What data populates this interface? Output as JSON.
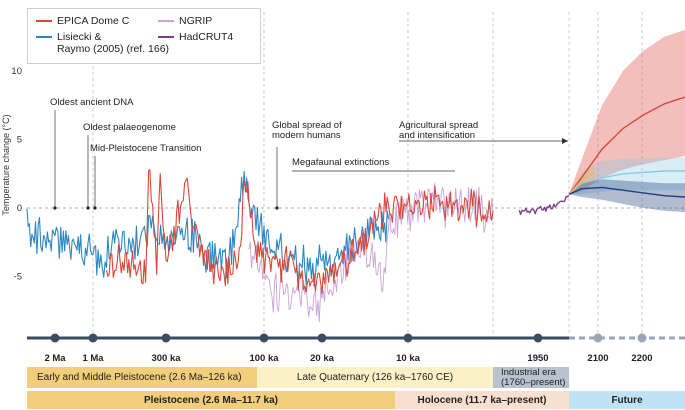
{
  "chart_data": {
    "type": "line",
    "ylabel": "Temperature change (°C)",
    "yticks": [
      -5,
      0,
      5,
      10
    ],
    "ylim": [
      -8,
      13
    ],
    "legend": {
      "placement": "top-left",
      "entries": [
        {
          "key": "epica",
          "label": "EPICA Dome C",
          "color": "#d9473c"
        },
        {
          "key": "lr04",
          "label": "Lisiecki & Raymo (2005) (ref. 166)",
          "label_line1": "Lisiecki &",
          "label_line2": "Raymo (2005) (ref. 166)",
          "color": "#2e86c1"
        },
        {
          "key": "ngrip",
          "label": "NGRIP",
          "color": "#c9a3d6"
        },
        {
          "key": "hadcrut",
          "label": "HadCRUT4",
          "color": "#7b3f8c"
        }
      ]
    },
    "timeline_ticks": [
      "2 Ma",
      "1 Ma",
      "300 ka",
      "100 ka",
      "20 ka",
      "10 ka",
      "1950",
      "2100",
      "2200"
    ],
    "series": [
      {
        "name": "Lisiecki & Raymo (2005) (ref. 166)",
        "x": [
          "2.6 Ma",
          "2.4 Ma",
          "2.2 Ma",
          "2 Ma",
          "1.8 Ma",
          "1.6 Ma",
          "1.4 Ma",
          "1.2 Ma",
          "1 Ma",
          "900 ka",
          "800 ka",
          "700 ka",
          "600 ka",
          "500 ka",
          "400 ka",
          "300 ka",
          "240 ka",
          "200 ka",
          "150 ka",
          "125 ka",
          "100 ka",
          "70 ka",
          "50 ka",
          "20 ka",
          "11.7 ka"
        ],
        "values": [
          -1.0,
          -1.8,
          -2.0,
          -1.5,
          -2.3,
          -2.2,
          -2.5,
          -3.0,
          -3.2,
          -3.5,
          -3.8,
          -3.0,
          -2.5,
          -2.8,
          -1.5,
          -2.6,
          -2.0,
          -3.0,
          -4.0,
          1.8,
          -2.0,
          -3.2,
          -3.8,
          -4.2,
          -0.8
        ]
      },
      {
        "name": "EPICA Dome C",
        "x": [
          "800 ka",
          "700 ka",
          "600 ka",
          "500 ka",
          "420 ka",
          "400 ka",
          "350 ka",
          "330 ka",
          "300 ka",
          "240 ka",
          "200 ka",
          "150 ka",
          "130 ka",
          "125 ka",
          "110 ka",
          "80 ka",
          "50 ka",
          "30 ka",
          "20 ka",
          "15 ka",
          "11.7 ka",
          "8 ka",
          "4 ka",
          "1760"
        ],
        "values": [
          -4.5,
          -4.0,
          -3.8,
          -4.0,
          -5.0,
          3.5,
          -4.5,
          2.0,
          -4.0,
          1.5,
          -3.5,
          -5.0,
          -3.0,
          2.5,
          -2.5,
          -4.5,
          -4.0,
          -5.5,
          -5.5,
          -3.0,
          0.2,
          0.3,
          0.0,
          -0.2
        ]
      },
      {
        "name": "NGRIP",
        "x": [
          "120 ka",
          "100 ka",
          "80 ka",
          "60 ka",
          "40 ka",
          "30 ka",
          "20 ka",
          "15 ka",
          "12 ka",
          "11.7 ka",
          "8 ka",
          "4 ka",
          "1760"
        ],
        "values": [
          -3.0,
          -5.0,
          -6.5,
          -6.0,
          -6.5,
          -7.0,
          -6.8,
          -3.0,
          -5.5,
          -1.0,
          0.4,
          -0.2,
          -0.3
        ]
      },
      {
        "name": "HadCRUT4",
        "x": [
          "1850",
          "1900",
          "1950",
          "2000",
          "2020"
        ],
        "values": [
          -0.3,
          -0.2,
          0.0,
          0.5,
          0.9
        ]
      }
    ],
    "projections": [
      {
        "scenario": "high",
        "color": "#d9473c",
        "x": [
          2020,
          2050,
          2100,
          2150,
          2200,
          2250,
          2300
        ],
        "values": [
          1.0,
          2.2,
          4.3,
          5.8,
          6.8,
          7.6,
          8.1
        ],
        "band": [
          [
            1.0,
            1.0
          ],
          [
            1.2,
            3.5
          ],
          [
            2.2,
            7.5
          ],
          [
            2.8,
            10.0
          ],
          [
            3.2,
            11.5
          ],
          [
            3.5,
            12.5
          ],
          [
            3.8,
            13.0
          ]
        ]
      },
      {
        "scenario": "medium",
        "color": "#8ecae6",
        "x": [
          2020,
          2050,
          2100,
          2150,
          2200,
          2250,
          2300
        ],
        "values": [
          1.0,
          1.8,
          2.2,
          2.5,
          2.6,
          2.7,
          2.7
        ],
        "band": [
          [
            1.0,
            1.0
          ],
          [
            1.0,
            2.5
          ],
          [
            1.2,
            3.4
          ],
          [
            1.3,
            3.6
          ],
          [
            1.3,
            3.6
          ],
          [
            1.3,
            3.7
          ],
          [
            1.3,
            3.7
          ]
        ]
      },
      {
        "scenario": "intermediate",
        "color": "#f2b25c",
        "x": [
          2020,
          2050,
          2080
        ],
        "values": [
          1.0,
          2.0,
          2.6
        ],
        "band": [
          [
            1.0,
            1.0
          ],
          [
            1.4,
            2.6
          ],
          [
            1.8,
            3.2
          ]
        ]
      },
      {
        "scenario": "low",
        "color": "#1f3f7a",
        "x": [
          2020,
          2050,
          2100,
          2150,
          2200,
          2250,
          2300
        ],
        "values": [
          1.0,
          1.4,
          1.5,
          1.3,
          1.1,
          0.9,
          0.8
        ],
        "band": [
          [
            1.0,
            1.0
          ],
          [
            0.8,
            1.8
          ],
          [
            0.6,
            2.1
          ],
          [
            0.3,
            2.0
          ],
          [
            0.0,
            1.9
          ],
          [
            -0.2,
            1.8
          ],
          [
            -0.3,
            1.8
          ]
        ]
      }
    ],
    "annotations": [
      "Oldest ancient DNA",
      "Oldest palaeogenome",
      "Mid-Pleistocene Transition",
      "Global spread of modern humans",
      "Megafaunal extinctions",
      "Agricultural spread and intensification"
    ],
    "annotation_lines": [
      {
        "line1": "Oldest ancient DNA"
      },
      {
        "line1": "Oldest palaeogenome"
      },
      {
        "line1": "Mid-Pleistocene Transition"
      },
      {
        "line1": "Global spread of",
        "line2": "modern humans"
      },
      {
        "line1": "Megafaunal extinctions"
      },
      {
        "line1": "Agricultural spread",
        "line2": "and intensification"
      }
    ]
  },
  "bands": {
    "row1": [
      {
        "label": "Early and Middle Pleistocene (2.6 Ma–126 ka)",
        "color": "#f2cd7a"
      },
      {
        "label": "Late Quaternary (126 ka–1760 CE)",
        "color": "#fbf0c6"
      },
      {
        "label": "Industrial era (1760–present)",
        "label_line1": "Industrial era",
        "label_line2": "(1760–present)",
        "color": "#b9c3cf"
      }
    ],
    "row2": [
      {
        "label": "Pleistocene (2.6 Ma–11.7 ka)",
        "color": "#f2cd7a"
      },
      {
        "label": "Holocene (11.7 ka–present)",
        "color": "#f9dfcf"
      },
      {
        "label": "Future",
        "color": "#bfe3f5"
      }
    ]
  },
  "colors": {
    "axis": "#999999",
    "timeline": "#3d4b63",
    "timeline_future": "#9aa6b8",
    "band_text": "#333333"
  }
}
